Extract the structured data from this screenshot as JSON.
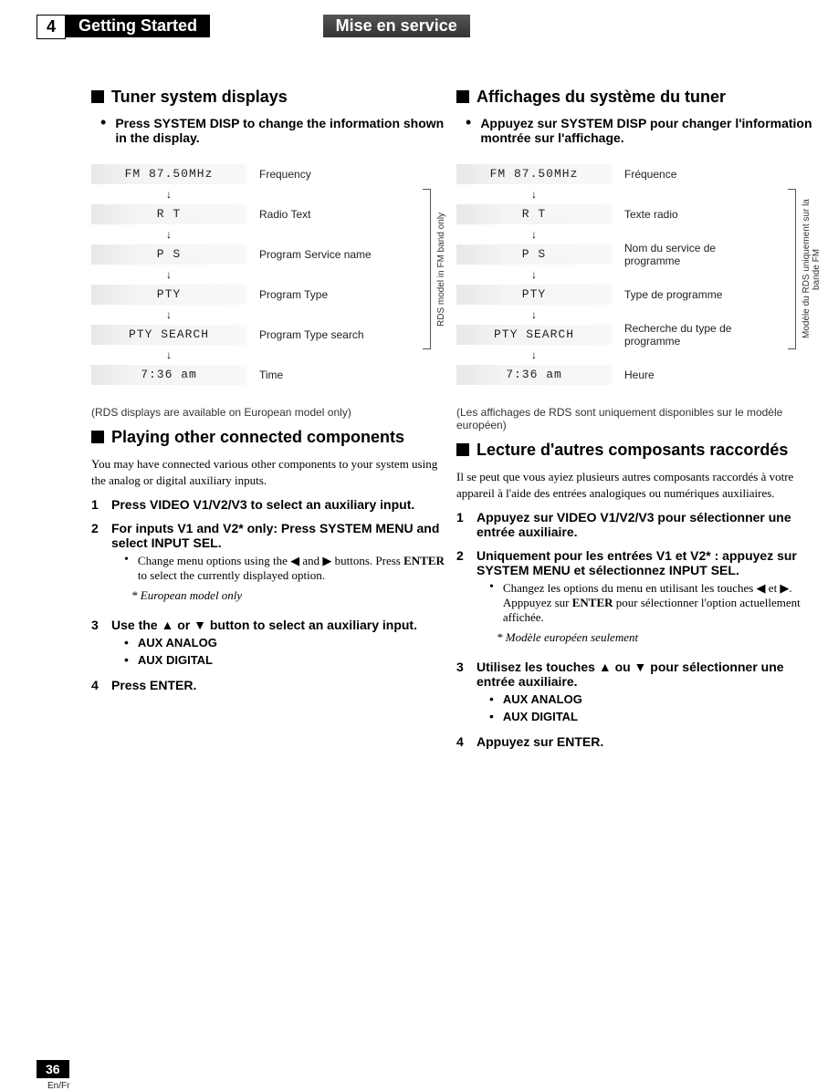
{
  "header": {
    "chapter_num": "4",
    "title_en": "Getting Started",
    "title_fr": "Mise en service"
  },
  "left": {
    "h_tuner": "Tuner system displays",
    "instr_tuner": "Press SYSTEM DISP to change the information shown in the display.",
    "diagram": {
      "rows": [
        {
          "lcd": "FM   87.50MHz",
          "label": "Frequency"
        },
        {
          "lcd": "R T",
          "label": "Radio Text"
        },
        {
          "lcd": "P S",
          "label": "Program Service name"
        },
        {
          "lcd": "PTY",
          "label": "Program Type"
        },
        {
          "lcd": "PTY SEARCH",
          "label": "Program Type search"
        },
        {
          "lcd": "7:36   am",
          "label": "Time"
        }
      ],
      "bracket_label": "RDS model in FM band only"
    },
    "note_rds": "(RDS displays are available on European model only)",
    "h_play": "Playing other connected components",
    "p_play": "You may have connected various other components to your system using the analog or digital auxiliary inputs.",
    "steps": {
      "s1": "Press VIDEO V1/V2/V3 to select an auxiliary input.",
      "s2": "For inputs V1 and V2* only: Press SYSTEM MENU and select INPUT SEL.",
      "s2_sub_a": "Change menu options using the ◀ and ▶ buttons. Press ",
      "s2_sub_b": "ENTER",
      "s2_sub_c": " to select the currently displayed option.",
      "s2_note": "* European model only",
      "s3": "Use the ▲ or ▼ button to select an auxiliary input.",
      "s3_a": "AUX ANALOG",
      "s3_b": "AUX DIGITAL",
      "s4": "Press ENTER."
    }
  },
  "right": {
    "h_tuner": "Affichages du système du tuner",
    "instr_tuner": "Appuyez sur SYSTEM DISP pour changer l'information montrée sur l'affichage.",
    "diagram": {
      "rows": [
        {
          "lcd": "FM   87.50MHz",
          "label": "Fréquence"
        },
        {
          "lcd": "R T",
          "label": "Texte radio"
        },
        {
          "lcd": "P S",
          "label": "Nom du service de programme"
        },
        {
          "lcd": "PTY",
          "label": "Type de programme"
        },
        {
          "lcd": "PTY SEARCH",
          "label": "Recherche du type de programme"
        },
        {
          "lcd": "7:36   am",
          "label": "Heure"
        }
      ],
      "bracket_label": "Modèle du RDS uniquement sur la bande FM"
    },
    "note_rds": "(Les affichages de RDS sont uniquement disponibles sur le modèle européen)",
    "h_play": "Lecture d'autres composants raccordés",
    "p_play": "Il se peut que vous ayiez plusieurs autres composants raccordés à votre appareil à l'aide des entrées analogiques ou numériques auxiliaires.",
    "steps": {
      "s1": "Appuyez sur VIDEO V1/V2/V3 pour sélectionner une entrée auxiliaire.",
      "s2": "Uniquement pour les entrées V1 et V2* : appuyez sur SYSTEM MENU et sélectionnez INPUT SEL.",
      "s2_sub_a": "Changez les options du menu en utilisant les touches ◀ et ▶. Apppuyez sur ",
      "s2_sub_b": "ENTER",
      "s2_sub_c": " pour sélectionner l'option actuellement affichée.",
      "s2_note": "* Modèle européen seulement",
      "s3": "Utilisez les touches ▲ ou ▼ pour sélectionner une entrée auxiliaire.",
      "s3_a": "AUX ANALOG",
      "s3_b": "AUX DIGITAL",
      "s4": "Appuyez sur ENTER."
    }
  },
  "footer": {
    "page": "36",
    "langs": "En/Fr"
  }
}
